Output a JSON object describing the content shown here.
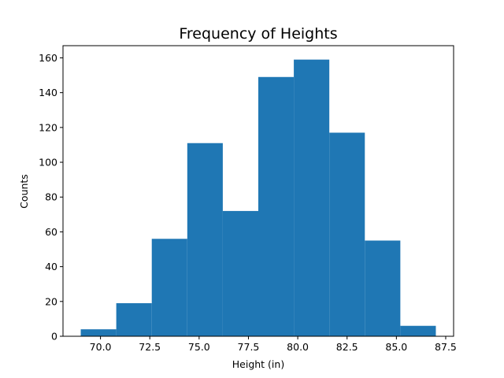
{
  "chart_data": {
    "type": "bar",
    "title": "Frequency of Heights",
    "xlabel": "Height (in)",
    "ylabel": "Counts",
    "bin_edges": [
      69.0,
      70.8,
      72.6,
      74.4,
      76.2,
      78.0,
      79.8,
      81.6,
      83.4,
      85.2,
      87.0
    ],
    "values": [
      4,
      19,
      56,
      111,
      72,
      149,
      159,
      117,
      55,
      6
    ],
    "xlim": [
      68.1,
      87.9
    ],
    "ylim": [
      0,
      167
    ],
    "xticks": [
      70.0,
      72.5,
      75.0,
      77.5,
      80.0,
      82.5,
      85.0,
      87.5
    ],
    "xtick_labels": [
      "70.0",
      "72.5",
      "75.0",
      "77.5",
      "80.0",
      "82.5",
      "85.0",
      "87.5"
    ],
    "yticks": [
      0,
      20,
      40,
      60,
      80,
      100,
      120,
      140,
      160
    ],
    "ytick_labels": [
      "0",
      "20",
      "40",
      "60",
      "80",
      "100",
      "120",
      "140",
      "160"
    ],
    "bar_color": "#1f77b4",
    "grid": false,
    "legend": "none"
  }
}
